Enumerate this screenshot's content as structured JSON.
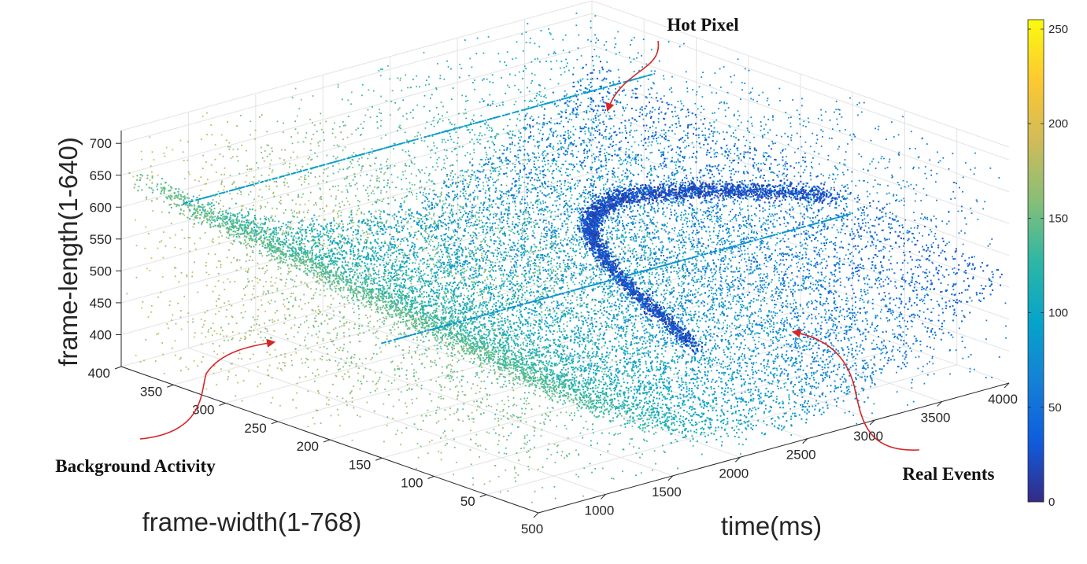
{
  "chart_data": {
    "type": "scatter",
    "subtype": "3d-scatter",
    "xlabel": "time(ms)",
    "ylabel": "frame-width(1-768)",
    "zlabel": "frame-length(1-640)",
    "x_ticks": [
      "500",
      "1000",
      "1500",
      "2000",
      "2500",
      "3000",
      "3500",
      "4000"
    ],
    "y_ticks": [
      "50",
      "100",
      "150",
      "200",
      "250",
      "300",
      "350",
      "400"
    ],
    "z_ticks": [
      "400",
      "450",
      "500",
      "550",
      "600",
      "650",
      "700"
    ],
    "xlim": [
      500,
      4000
    ],
    "ylim": [
      0,
      400
    ],
    "zlim": [
      350,
      720
    ],
    "grid": true,
    "colormap": "parula",
    "colorbar": {
      "range": [
        0,
        255
      ],
      "ticks": [
        "0",
        "50",
        "100",
        "150",
        "200",
        "250"
      ],
      "colors": [
        "#352a87",
        "#0f5cdd",
        "#1481d6",
        "#06a4ca",
        "#2eb7a4",
        "#87bf77",
        "#d1bb59",
        "#fec832",
        "#f9fb0e"
      ]
    },
    "annotations": [
      {
        "text": "Hot Pixel",
        "color": "#d62728"
      },
      {
        "text": "Background Activity",
        "color": "#d62728"
      },
      {
        "text": "Real Events",
        "color": "#d62728"
      }
    ]
  }
}
